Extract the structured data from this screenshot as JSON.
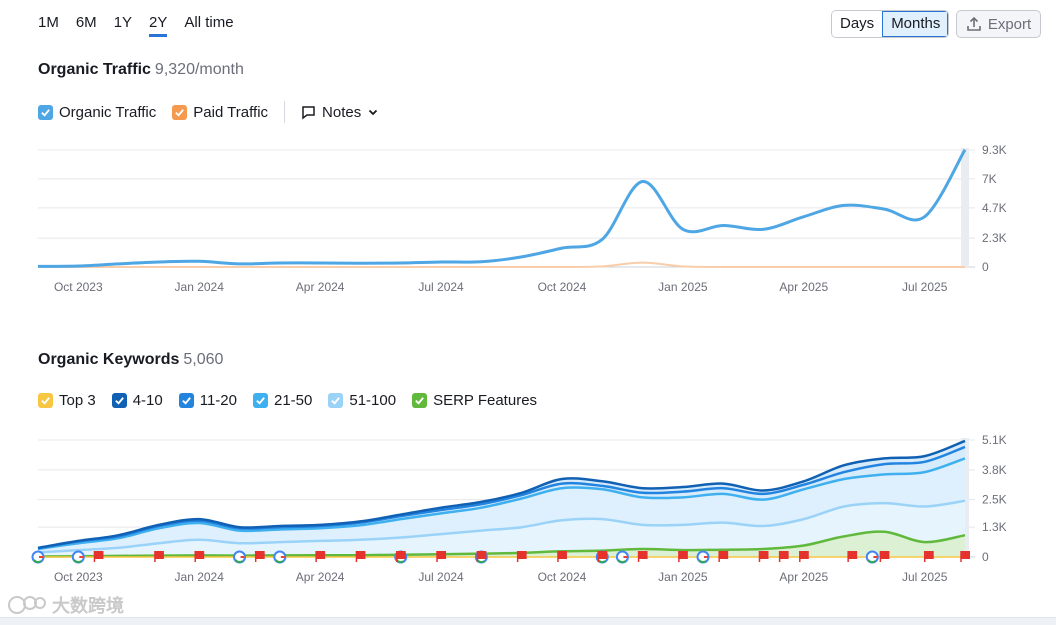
{
  "range_tabs": [
    {
      "label": "1M"
    },
    {
      "label": "6M"
    },
    {
      "label": "1Y"
    },
    {
      "label": "2Y",
      "active": true
    },
    {
      "label": "All time"
    }
  ],
  "granularity": {
    "days": "Days",
    "months": "Months",
    "selected": "Months"
  },
  "export_label": "Export",
  "traffic": {
    "title": "Organic Traffic",
    "value": "9,320/month",
    "legend": {
      "organic": "Organic Traffic",
      "paid": "Paid Traffic",
      "notes": "Notes"
    }
  },
  "keywords": {
    "title": "Organic Keywords",
    "value": "5,060",
    "legend": {
      "top3": "Top 3",
      "r4_10": "4-10",
      "r11_20": "11-20",
      "r21_50": "21-50",
      "r51_100": "51-100",
      "serp": "SERP Features"
    }
  },
  "colors": {
    "organic": "#4ea6e4",
    "paid": "#f59a4f",
    "top3": "#f7c744",
    "r4_10": "#1060b3",
    "r11_20": "#2384e0",
    "r21_50": "#3fb0ef",
    "r51_100": "#9bd3f8",
    "serp": "#61b93c",
    "grid": "#e6e8ec"
  },
  "watermark": "大数跨境",
  "chart_data": [
    {
      "type": "line",
      "title": "Organic Traffic",
      "x": [
        "Sep 2023",
        "Oct 2023",
        "Nov 2023",
        "Dec 2023",
        "Jan 2024",
        "Feb 2024",
        "Mar 2024",
        "Apr 2024",
        "May 2024",
        "Jun 2024",
        "Jul 2024",
        "Aug 2024",
        "Sep 2024",
        "Oct 2024",
        "Nov 2024",
        "Dec 2024",
        "Jan 2025",
        "Feb 2025",
        "Mar 2025",
        "Apr 2025",
        "May 2025",
        "Jun 2025",
        "Jul 2025",
        "Aug 2025"
      ],
      "x_tick_labels": [
        "Oct 2023",
        "Jan 2024",
        "Apr 2024",
        "Jul 2024",
        "Oct 2024",
        "Jan 2025",
        "Apr 2025",
        "Jul 2025"
      ],
      "x_tick_index": [
        1,
        4,
        7,
        10,
        13,
        16,
        19,
        22
      ],
      "y_tick_labels": [
        "9.3K",
        "7K",
        "4.7K",
        "2.3K",
        "0"
      ],
      "y_tick_values": [
        9300,
        7000,
        4700,
        2300,
        0
      ],
      "ylim": [
        0,
        9300
      ],
      "series": [
        {
          "name": "Organic Traffic",
          "values": [
            50,
            80,
            250,
            400,
            450,
            250,
            320,
            320,
            300,
            320,
            400,
            420,
            800,
            1500,
            2200,
            6800,
            3000,
            3300,
            3000,
            4000,
            4900,
            4600,
            4000,
            9320
          ]
        },
        {
          "name": "Paid Traffic",
          "values": [
            0,
            0,
            0,
            0,
            0,
            0,
            0,
            0,
            0,
            0,
            0,
            0,
            0,
            0,
            50,
            350,
            50,
            0,
            0,
            0,
            0,
            0,
            0,
            0
          ]
        }
      ]
    },
    {
      "type": "area",
      "title": "Organic Keywords",
      "x": [
        "Sep 2023",
        "Oct 2023",
        "Nov 2023",
        "Dec 2023",
        "Jan 2024",
        "Feb 2024",
        "Mar 2024",
        "Apr 2024",
        "May 2024",
        "Jun 2024",
        "Jul 2024",
        "Aug 2024",
        "Sep 2024",
        "Oct 2024",
        "Nov 2024",
        "Dec 2024",
        "Jan 2025",
        "Feb 2025",
        "Mar 2025",
        "Apr 2025",
        "May 2025",
        "Jun 2025",
        "Jul 2025",
        "Aug 2025"
      ],
      "x_tick_labels": [
        "Oct 2023",
        "Jan 2024",
        "Apr 2024",
        "Jul 2024",
        "Oct 2024",
        "Jan 2025",
        "Apr 2025",
        "Jul 2025"
      ],
      "x_tick_index": [
        1,
        4,
        7,
        10,
        13,
        16,
        19,
        22
      ],
      "y_tick_labels": [
        "5.1K",
        "3.8K",
        "2.5K",
        "1.3K",
        "0"
      ],
      "y_tick_values": [
        5100,
        3800,
        2500,
        1300,
        0
      ],
      "ylim": [
        0,
        5100
      ],
      "series": [
        {
          "name": "Top 3",
          "values": [
            0,
            0,
            0,
            0,
            0,
            0,
            0,
            0,
            0,
            0,
            0,
            0,
            0,
            0,
            0,
            0,
            0,
            0,
            0,
            0,
            0,
            0,
            0,
            0
          ]
        },
        {
          "name": "4-10",
          "values": [
            400,
            700,
            950,
            1400,
            1650,
            1300,
            1350,
            1400,
            1550,
            1850,
            2150,
            2400,
            2800,
            3400,
            3300,
            3000,
            3050,
            3200,
            2900,
            3300,
            4000,
            4300,
            4400,
            5060
          ]
        },
        {
          "name": "11-20",
          "values": [
            380,
            680,
            900,
            1350,
            1580,
            1250,
            1300,
            1350,
            1500,
            1780,
            2050,
            2300,
            2700,
            3200,
            3100,
            2800,
            2850,
            3000,
            2750,
            3150,
            3700,
            4050,
            4150,
            4800
          ]
        },
        {
          "name": "21-50",
          "values": [
            350,
            600,
            820,
            1250,
            1480,
            1150,
            1200,
            1250,
            1380,
            1650,
            1900,
            2150,
            2550,
            3000,
            2950,
            2600,
            2600,
            2750,
            2500,
            2950,
            3400,
            3600,
            3700,
            4300
          ]
        },
        {
          "name": "51-100",
          "values": [
            200,
            300,
            400,
            600,
            750,
            600,
            650,
            700,
            750,
            850,
            1000,
            1150,
            1300,
            1600,
            1650,
            1400,
            1400,
            1500,
            1350,
            1650,
            2200,
            2350,
            2200,
            2450
          ]
        },
        {
          "name": "SERP Features",
          "values": [
            20,
            30,
            50,
            60,
            70,
            60,
            70,
            80,
            80,
            100,
            120,
            150,
            180,
            250,
            280,
            350,
            300,
            320,
            350,
            500,
            900,
            1100,
            650,
            950
          ]
        }
      ],
      "note_flags": [
        1.5,
        3,
        4,
        5.5,
        7,
        8,
        9,
        10,
        11,
        12,
        13,
        14,
        15,
        16,
        17,
        18,
        18.5,
        19,
        20.2,
        21,
        22.1,
        23
      ],
      "google_markers": [
        0,
        1,
        5,
        6,
        9,
        11,
        14,
        14.5,
        16.5,
        20.7
      ]
    }
  ]
}
